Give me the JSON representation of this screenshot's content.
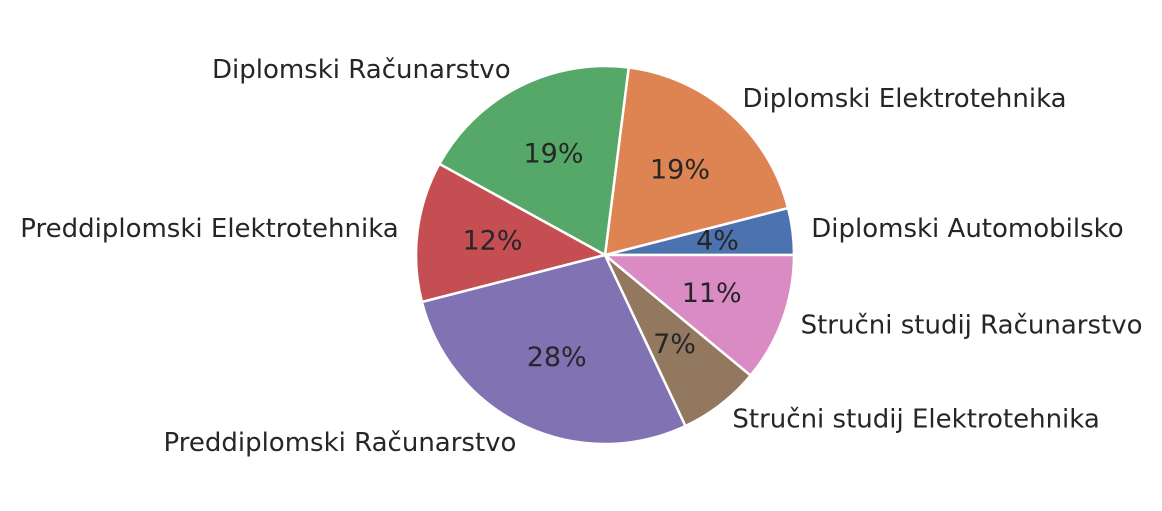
{
  "chart_data": {
    "type": "pie",
    "categories": [
      "Diplomski Automobilsko",
      "Diplomski Elektrotehnika",
      "Diplomski Računarstvo",
      "Preddiplomski Elektrotehnika",
      "Preddiplomski Računarstvo",
      "Stručni studij Elektrotehnika",
      "Stručni studij Računarstvo"
    ],
    "values": [
      4,
      19,
      19,
      12,
      28,
      7,
      11
    ],
    "value_labels": [
      "4%",
      "19%",
      "19%",
      "12%",
      "28%",
      "7%",
      "11%"
    ],
    "colors": [
      "#4c72b0",
      "#dd8452",
      "#55a868",
      "#c44e52",
      "#8172b3",
      "#937860",
      "#da8bc3"
    ],
    "start_angle": 0,
    "direction": "counterclockwise",
    "title": ""
  }
}
